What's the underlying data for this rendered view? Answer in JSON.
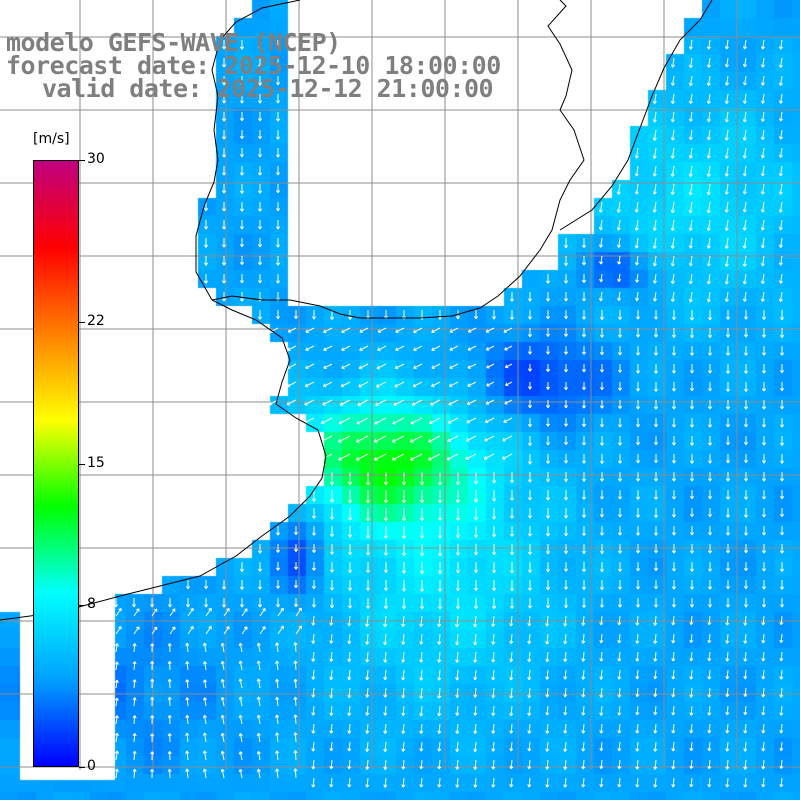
{
  "title": {
    "line1": "modelo GEFS-WAVE (NCEP)",
    "line2": "forecast date: 2025-12-10 18:00:00",
    "line3": "valid date: 2025-12-12 21:00:00"
  },
  "colorbar": {
    "unit": "[m/s]",
    "min": 0,
    "max": 30,
    "ticks": [
      {
        "label": "30",
        "value": 30
      },
      {
        "label": "22",
        "value": 22
      },
      {
        "label": "15",
        "value": 15
      },
      {
        "label": "8",
        "value": 8
      },
      {
        "label": "0",
        "value": 0
      }
    ],
    "colors": [
      "#0000ff",
      "#00a0ff",
      "#00ffff",
      "#00ff00",
      "#ffff00",
      "#ff8000",
      "#ff0000",
      "#c00080"
    ]
  },
  "map": {
    "land_color": "#ffffff",
    "grid_color": "#8c8c8c",
    "arrow_color": "#ffffff",
    "coast_color": "#000000",
    "grid": true
  }
}
